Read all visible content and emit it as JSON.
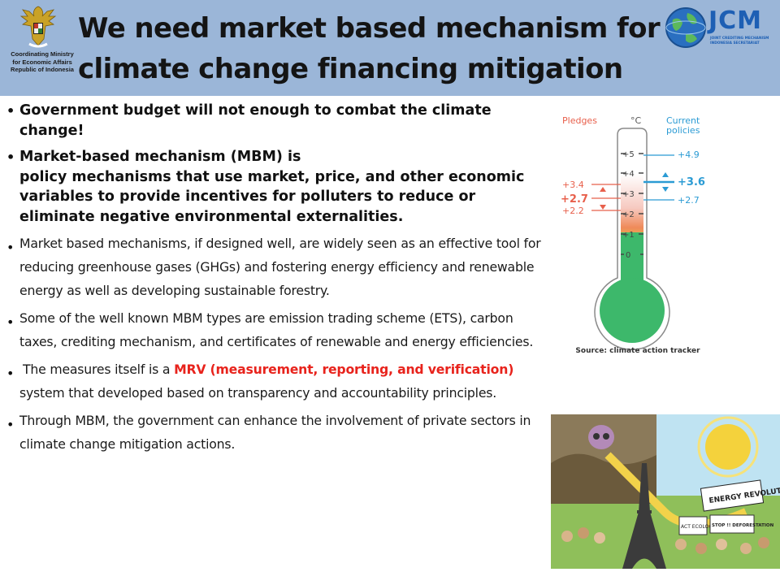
{
  "header": {
    "title_line1": "We need market based mechanism for",
    "title_line2": "climate change financing mitigation",
    "org_lines": [
      "Coordinating Ministry",
      "for Economic Affairs",
      "Republic of Indonesia"
    ],
    "jcm_label": "JCM",
    "jcm_sub_line1": "JOINT CREDITING MECHANISM",
    "jcm_sub_line2": "INDONESIA SECRETARIAT",
    "icons": [
      "garuda-emblem-icon",
      "globe-icon"
    ]
  },
  "bullets": {
    "b1": "Government budget will not enough to combat the climate change!",
    "b2_line1": "Market-based mechanism (MBM) is",
    "b2_line2": "policy mechanisms that use market, price, and other economic variables to provide incentives for polluters to reduce or eliminate negative environmental externalities.",
    "b3": "Market based mechanisms, if designed well, are widely seen as an effective tool for reducing greenhouse gases (GHGs) and fostering energy efficiency and renewable energy as well as developing sustainable forestry.",
    "b4": "Some of the well known MBM types are emission trading scheme (ETS), carbon taxes, crediting mechanism, and certificates of renewable and energy efficiencies.",
    "b5_pre": "The measures itself is a ",
    "b5_red": "MRV (measurement, reporting, and verification)",
    "b5_post": " system that developed based on transparency and accountability principles.",
    "b6": "Through MBM, the government can enhance the involvement of private sectors in climate change mitigation actions."
  },
  "thermometer": {
    "pledges_label": "Pledges",
    "unit_label": "°C",
    "current_label_line1": "Current",
    "current_label_line2": "policies",
    "scale": [
      "+5",
      "+4",
      "+3",
      "+2",
      "+1",
      "0"
    ],
    "pledges": [
      "+3.4",
      "+2.7",
      "+2.2"
    ],
    "current": [
      "+4.9",
      "+3.6",
      "+2.7"
    ],
    "colors": {
      "pledges": "#e8604c",
      "current": "#2b9bd4",
      "green": "#3db86b"
    }
  },
  "source": "Source: climate action tracker",
  "cartoon": {
    "banner": "ENERGY REVOLUTION",
    "signs": [
      "ACT ECOLOGY",
      "STOP !! DEFORESTATION"
    ],
    "icons": [
      "skull-icon",
      "sun-icon",
      "eiffel-tower-icon",
      "crowd-icon"
    ]
  }
}
